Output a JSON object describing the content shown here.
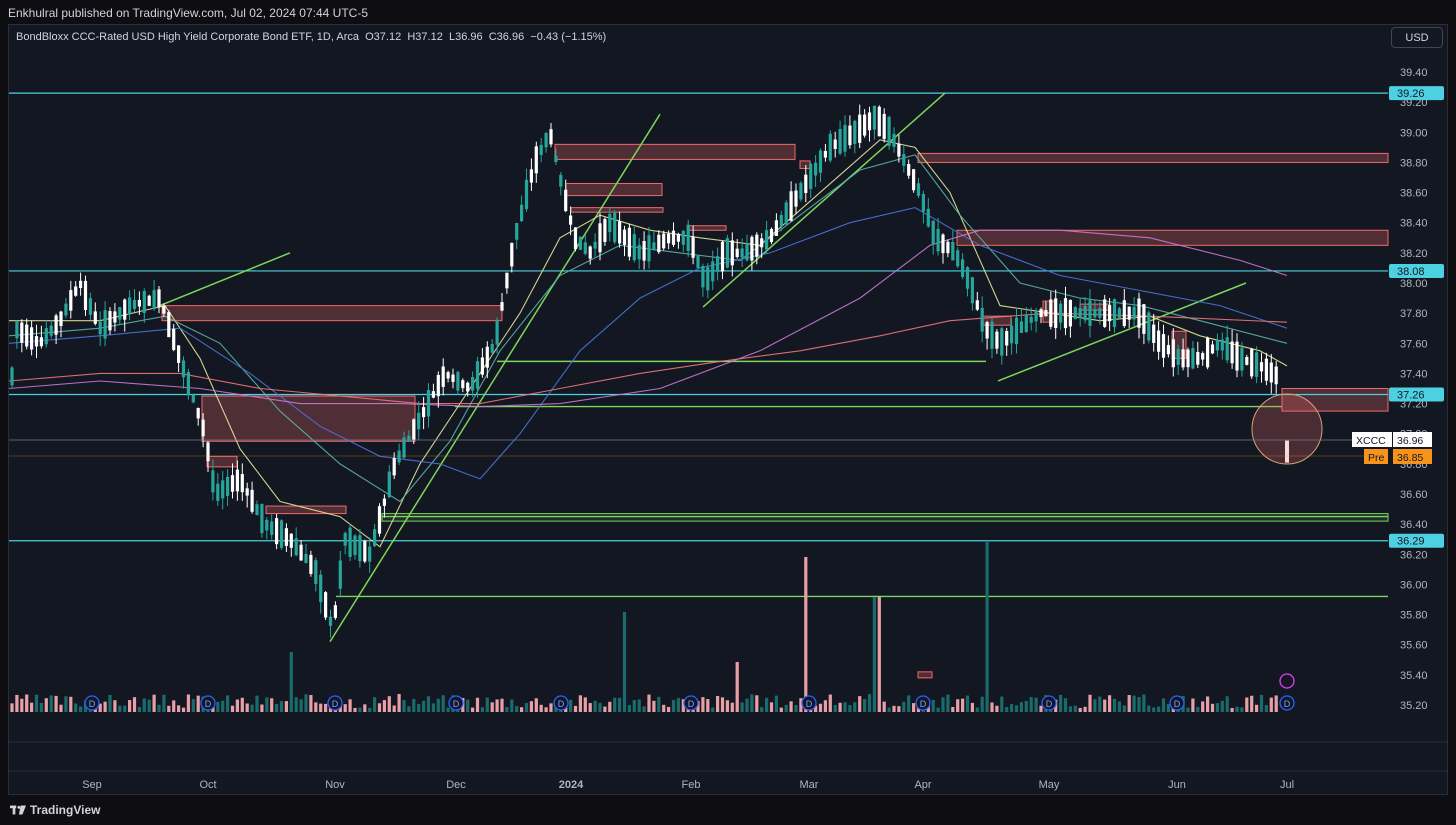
{
  "publisher_line": "Enkhulral published on TradingView.com, Jul 02, 2024 07:44 UTC-5",
  "legend": {
    "title": "BondBloxx CCC-Rated USD High Yield Corporate Bond ETF, 1D, Arca",
    "open": "O37.12",
    "high": "H37.12",
    "low": "L36.96",
    "close": "C36.96",
    "change": "−0.43 (−1.15%)"
  },
  "currency_button": "USD",
  "footer_brand": "TradingView",
  "colors": {
    "background": "#131722",
    "up_candle": "#26a69a",
    "down_candle": "#ffffff",
    "support_line": "#4dd0e1",
    "trend_line": "#7cd65a",
    "resistance_box": "#f06a6a",
    "volume_up": "#1a6b6b",
    "volume_down": "#e8a0a6",
    "dividend_marker": "#2962ff",
    "premarket_tag": "#f7931a"
  },
  "chart_data": {
    "type": "candlestick",
    "symbol": "XCCC",
    "x_ticks": [
      "Sep",
      "Oct",
      "Nov",
      "Dec",
      "2024",
      "Feb",
      "Mar",
      "Apr",
      "May",
      "Jun",
      "Jul"
    ],
    "y_ticks": [
      "39.40",
      "39.20",
      "39.00",
      "38.80",
      "38.60",
      "38.40",
      "38.20",
      "38.00",
      "37.80",
      "37.60",
      "37.40",
      "37.20",
      "37.00",
      "36.80",
      "36.60",
      "36.40",
      "36.20",
      "36.00",
      "35.80",
      "35.60",
      "35.40",
      "35.20"
    ],
    "ylim": [
      35.1,
      39.6
    ],
    "price_tags": [
      {
        "label": "39.26",
        "value": 39.26
      },
      {
        "label": "38.08",
        "value": 38.08
      },
      {
        "label": "37.26",
        "value": 37.26
      },
      {
        "label": "36.29",
        "value": 36.29
      }
    ],
    "last_price": {
      "symbol": "XCCC",
      "value": "36.96"
    },
    "premarket": {
      "label": "Pre",
      "value": "36.85"
    },
    "horizontal_support_levels": [
      39.26,
      38.08,
      37.26,
      36.29
    ],
    "green_levels": [
      37.48,
      37.18,
      36.45,
      35.92
    ],
    "resistance_zones": [
      {
        "from": 38.8,
        "to": 38.86,
        "start": "Apr"
      },
      {
        "from": 38.25,
        "to": 38.35,
        "start": "Apr"
      },
      {
        "from": 37.15,
        "to": 37.3,
        "start": "Jul"
      },
      {
        "from": 36.95,
        "to": 37.25,
        "start": "Oct"
      },
      {
        "from": 37.75,
        "to": 37.85,
        "start": "Sep"
      }
    ],
    "trend_lines": [
      {
        "from": [
          "Sep",
          37.2
        ],
        "to": [
          "Oct",
          38.2
        ]
      },
      {
        "from": [
          "Nov",
          35.6
        ],
        "to": [
          "Jan",
          39.2
        ]
      },
      {
        "from": [
          "Feb",
          37.8
        ],
        "to": [
          "Mar",
          39.2
        ]
      },
      {
        "from": [
          "Apr",
          37.3
        ],
        "to": [
          "Jun",
          38.0
        ]
      }
    ],
    "dividend_markers": [
      "Sep",
      "Oct",
      "Nov",
      "Dec",
      "Jan",
      "Feb",
      "Mar",
      "Apr",
      "May",
      "Jun",
      "Jul"
    ],
    "ohlc_last": {
      "open": 37.12,
      "high": 37.12,
      "low": 36.96,
      "close": 36.96
    },
    "grid": false
  }
}
